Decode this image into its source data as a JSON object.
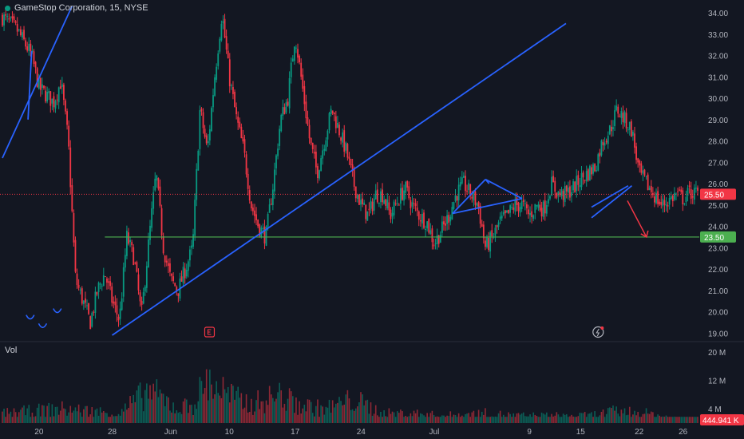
{
  "header": {
    "symbol_title": "GameStop Corporation, 15, NYSE"
  },
  "volume_pane": {
    "label": "Vol"
  },
  "colors": {
    "background": "#131722",
    "up": "#089981",
    "down": "#f23645",
    "trendline": "#2962ff",
    "support": "#4caf50",
    "grid": "#1e222d",
    "axis_text": "#b2b5be"
  },
  "chart_data": [
    {
      "type": "candlestick",
      "title": "GameStop Corporation, 15, NYSE",
      "x_tick_labels": [
        "20",
        "28",
        "Jun",
        "10",
        "17",
        "24",
        "Jul",
        "9",
        "15",
        "22",
        "26"
      ],
      "y_tick_labels": [
        "34.00",
        "33.00",
        "32.00",
        "31.00",
        "30.00",
        "29.00",
        "28.00",
        "27.00",
        "26.00",
        "25.00",
        "24.00",
        "23.00",
        "22.00",
        "21.00",
        "20.00",
        "19.00"
      ],
      "ylim": [
        18.9,
        34.3
      ],
      "grid": false,
      "price_path": [
        [
          0,
          33.8
        ],
        [
          2,
          33.2
        ],
        [
          4,
          32.0
        ],
        [
          5,
          30.5
        ],
        [
          7,
          29.8
        ],
        [
          8,
          30.8
        ],
        [
          9,
          28.0
        ],
        [
          10,
          21.5
        ],
        [
          11,
          20.5
        ],
        [
          12,
          19.5
        ],
        [
          13,
          21.0
        ],
        [
          14,
          21.8
        ],
        [
          15,
          20.5
        ],
        [
          16,
          19.6
        ],
        [
          17,
          23.5
        ],
        [
          18,
          22.5
        ],
        [
          19,
          19.8
        ],
        [
          20,
          23.3
        ],
        [
          21,
          26.5
        ],
        [
          22,
          23.0
        ],
        [
          23,
          21.5
        ],
        [
          24,
          21.0
        ],
        [
          25,
          22.0
        ],
        [
          26,
          23.0
        ],
        [
          27,
          29.5
        ],
        [
          28,
          27.5
        ],
        [
          29,
          31.0
        ],
        [
          30,
          34.0
        ],
        [
          31,
          31.0
        ],
        [
          32,
          29.0
        ],
        [
          33,
          27.5
        ],
        [
          34,
          25.0
        ],
        [
          35,
          24.0
        ],
        [
          36,
          23.5
        ],
        [
          37,
          26.0
        ],
        [
          38,
          29.0
        ],
        [
          39,
          30.0
        ],
        [
          40,
          33.0
        ],
        [
          41,
          30.5
        ],
        [
          42,
          28.0
        ],
        [
          43,
          26.5
        ],
        [
          44,
          28.0
        ],
        [
          45,
          29.5
        ],
        [
          46,
          28.5
        ],
        [
          47,
          27.5
        ],
        [
          48,
          26.0
        ],
        [
          49,
          25.0
        ],
        [
          50,
          24.5
        ],
        [
          51,
          25.5
        ],
        [
          52,
          25.5
        ],
        [
          53,
          24.5
        ],
        [
          54,
          25.2
        ],
        [
          55,
          25.8
        ],
        [
          56,
          25.0
        ],
        [
          57,
          24.5
        ],
        [
          58,
          24.2
        ],
        [
          59,
          23.2
        ],
        [
          60,
          23.8
        ],
        [
          61,
          24.5
        ],
        [
          62,
          25.5
        ],
        [
          63,
          26.0
        ],
        [
          64,
          25.5
        ],
        [
          65,
          25.0
        ],
        [
          66,
          23.0
        ],
        [
          67,
          23.5
        ],
        [
          68,
          24.2
        ],
        [
          69,
          24.5
        ],
        [
          70,
          25.0
        ],
        [
          71,
          25.0
        ],
        [
          72,
          24.5
        ],
        [
          73,
          25.0
        ],
        [
          74,
          24.8
        ],
        [
          75,
          26.0
        ],
        [
          76,
          25.5
        ],
        [
          77,
          25.5
        ],
        [
          78,
          25.8
        ],
        [
          79,
          26.2
        ],
        [
          80,
          26.5
        ],
        [
          81,
          26.8
        ],
        [
          82,
          28.0
        ],
        [
          83,
          28.5
        ],
        [
          84,
          29.5
        ],
        [
          85,
          29.0
        ],
        [
          86,
          28.5
        ],
        [
          87,
          26.5
        ],
        [
          88,
          26.0
        ],
        [
          89,
          25.5
        ],
        [
          90,
          25.0
        ],
        [
          91,
          25.2
        ],
        [
          92,
          25.5
        ],
        [
          93,
          25.3
        ],
        [
          94,
          25.6
        ],
        [
          95,
          25.5
        ]
      ],
      "current_price": 25.5,
      "current_price_label": "25.50",
      "support_level": 23.5,
      "support_label": "23.50"
    },
    {
      "type": "bar",
      "title": "Vol",
      "y_tick_labels": [
        "20 M",
        "12 M",
        "4 M"
      ],
      "ylim": [
        0,
        22000000
      ],
      "current_volume_label": "444.941 K",
      "volume_profile": [
        [
          0,
          2
        ],
        [
          8,
          3
        ],
        [
          16,
          2
        ],
        [
          20,
          7
        ],
        [
          24,
          3
        ],
        [
          26,
          4
        ],
        [
          28,
          9
        ],
        [
          30,
          7
        ],
        [
          32,
          5
        ],
        [
          34,
          4
        ],
        [
          38,
          6
        ],
        [
          40,
          4
        ],
        [
          44,
          3
        ],
        [
          48,
          5
        ],
        [
          52,
          2
        ],
        [
          56,
          2
        ],
        [
          60,
          1.5
        ],
        [
          66,
          2
        ],
        [
          70,
          1.5
        ],
        [
          76,
          1.5
        ],
        [
          80,
          1.5
        ],
        [
          84,
          2.5
        ],
        [
          88,
          2
        ],
        [
          92,
          1
        ],
        [
          95,
          0.5
        ]
      ]
    }
  ]
}
